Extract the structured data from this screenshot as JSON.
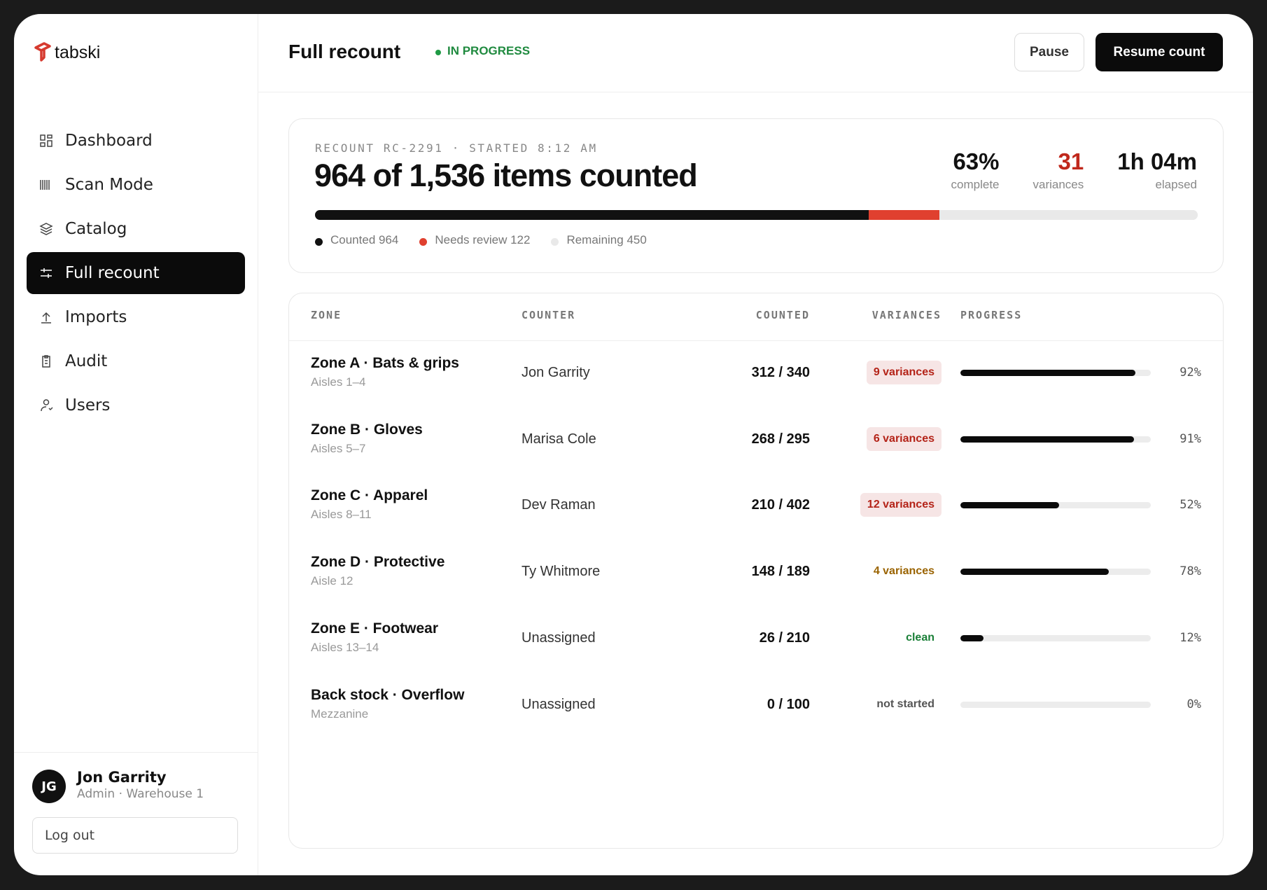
{
  "brand": "tabski",
  "nav": {
    "active": 3,
    "items": [
      "Dashboard",
      "Scan Mode",
      "Catalog",
      "Full recount",
      "Imports",
      "Audit",
      "Users"
    ]
  },
  "user": {
    "initials": "JG",
    "name": "Jon Garrity",
    "role": "Admin · Warehouse 1",
    "logout": "Log out"
  },
  "header": {
    "title": "Full recount",
    "status": "IN PROGRESS",
    "buttons": [
      "Pause",
      "Resume count"
    ]
  },
  "summary": {
    "meta": "RECOUNT RC-2291 · STARTED 8:12 AM",
    "headline": "964 of 1,536 items counted",
    "stats": [
      {
        "value": "63%",
        "label": "complete",
        "color": "#111111"
      },
      {
        "value": "31",
        "label": "variances",
        "color": "#c0281c"
      },
      {
        "value": "1h 04m",
        "label": "elapsed",
        "color": "#111111"
      }
    ],
    "segments": [
      {
        "label": "Counted 964",
        "value": 964,
        "color": "#111111"
      },
      {
        "label": "Needs review 122",
        "value": 122,
        "color": "#e0402f"
      },
      {
        "label": "Remaining 450",
        "value": 450,
        "color": "#e9e9e9"
      }
    ]
  },
  "table": {
    "columns": [
      "ZONE",
      "COUNTER",
      "COUNTED",
      "VARIANCES",
      "PROGRESS"
    ],
    "rows": [
      {
        "zone": "Zone A · Bats & grips",
        "aisles": "Aisles 1–4",
        "counter": "Jon Garrity",
        "counted": "312 / 340",
        "variances": "9 variances",
        "tone": "red",
        "progress": 92,
        "progress_label": "92%"
      },
      {
        "zone": "Zone B · Gloves",
        "aisles": "Aisles 5–7",
        "counter": "Marisa Cole",
        "counted": "268 / 295",
        "variances": "6 variances",
        "tone": "red",
        "progress": 91,
        "progress_label": "91%"
      },
      {
        "zone": "Zone C · Apparel",
        "aisles": "Aisles 8–11",
        "counter": "Dev Raman",
        "counted": "210 / 402",
        "variances": "12 variances",
        "tone": "red",
        "progress": 52,
        "progress_label": "52%"
      },
      {
        "zone": "Zone D · Protective",
        "aisles": "Aisle 12",
        "counter": "Ty Whitmore",
        "counted": "148 / 189",
        "variances": "4 variances",
        "tone": "amber",
        "progress": 78,
        "progress_label": "78%"
      },
      {
        "zone": "Zone E · Footwear",
        "aisles": "Aisles 13–14",
        "counter": "Unassigned",
        "counted": "26 / 210",
        "variances": "clean",
        "tone": "green",
        "progress": 12,
        "progress_label": "12%"
      },
      {
        "zone": "Back stock · Overflow",
        "aisles": "Mezzanine",
        "counter": "Unassigned",
        "counted": "0 / 100",
        "variances": "not started",
        "tone": "gray",
        "progress": 0,
        "progress_label": "0%"
      }
    ]
  }
}
